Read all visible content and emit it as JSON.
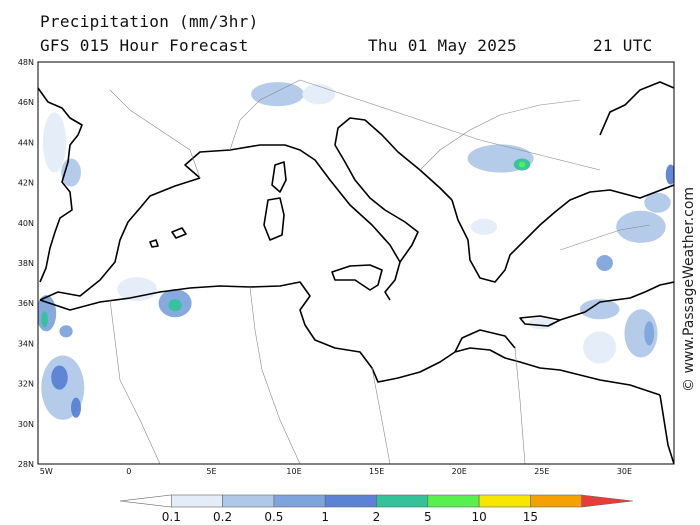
{
  "header": {
    "title": "Precipitation (mm/3hr)",
    "subtitle": "GFS 015 Hour Forecast",
    "date": "Thu 01 May 2025",
    "time": "21 UTC"
  },
  "credit": "© www.PassageWeather.com",
  "map": {
    "lon_range": [
      -5.5,
      33
    ],
    "lat_range": [
      28,
      48
    ],
    "lat_ticks": [
      {
        "value": 28,
        "label": "28N"
      },
      {
        "value": 30,
        "label": "30N"
      },
      {
        "value": 32,
        "label": "32N"
      },
      {
        "value": 34,
        "label": "34N"
      },
      {
        "value": 36,
        "label": "36N"
      },
      {
        "value": 38,
        "label": "38N"
      },
      {
        "value": 40,
        "label": "40N"
      },
      {
        "value": 42,
        "label": "42N"
      },
      {
        "value": 44,
        "label": "44N"
      },
      {
        "value": 46,
        "label": "46N"
      },
      {
        "value": 48,
        "label": "48N"
      }
    ],
    "lon_ticks": [
      {
        "value": -5,
        "label": "5W"
      },
      {
        "value": 0,
        "label": "0"
      },
      {
        "value": 5,
        "label": "5E"
      },
      {
        "value": 10,
        "label": "10E"
      },
      {
        "value": 15,
        "label": "15E"
      },
      {
        "value": 20,
        "label": "20E"
      },
      {
        "value": 25,
        "label": "25E"
      },
      {
        "value": 30,
        "label": "30E"
      }
    ],
    "precip_areas": [
      {
        "name": "alps-west",
        "lon": 9.0,
        "lat": 46.4,
        "rx": 1.6,
        "ry": 0.6,
        "level": 2
      },
      {
        "name": "alps-east",
        "lon": 11.5,
        "lat": 46.4,
        "rx": 1.0,
        "ry": 0.5,
        "level": 1
      },
      {
        "name": "balkans",
        "lon": 22.5,
        "lat": 43.2,
        "rx": 2.0,
        "ry": 0.7,
        "level": 2
      },
      {
        "name": "balkans-core",
        "lon": 23.8,
        "lat": 42.9,
        "rx": 0.5,
        "ry": 0.3,
        "level": 5
      },
      {
        "name": "balkans-peak",
        "lon": 23.8,
        "lat": 42.9,
        "rx": 0.2,
        "ry": 0.15,
        "level": 6
      },
      {
        "name": "france-west",
        "lon": -4.5,
        "lat": 44.0,
        "rx": 0.7,
        "ry": 1.5,
        "level": 1
      },
      {
        "name": "spain-north",
        "lon": -3.5,
        "lat": 42.5,
        "rx": 0.6,
        "ry": 0.7,
        "level": 2
      },
      {
        "name": "algeria-west",
        "lon": 0.5,
        "lat": 36.7,
        "rx": 1.2,
        "ry": 0.6,
        "level": 1
      },
      {
        "name": "algeria-central",
        "lon": 2.8,
        "lat": 36.0,
        "rx": 1.0,
        "ry": 0.7,
        "level": 3
      },
      {
        "name": "algeria-core",
        "lon": 2.8,
        "lat": 35.9,
        "rx": 0.4,
        "ry": 0.3,
        "level": 5
      },
      {
        "name": "morocco-north",
        "lon": -5.0,
        "lat": 35.5,
        "rx": 0.6,
        "ry": 0.9,
        "level": 3
      },
      {
        "name": "morocco-core",
        "lon": -5.1,
        "lat": 35.2,
        "rx": 0.2,
        "ry": 0.4,
        "level": 5
      },
      {
        "name": "morocco-coast",
        "lon": -3.8,
        "lat": 34.6,
        "rx": 0.4,
        "ry": 0.3,
        "level": 3
      },
      {
        "name": "morocco-atlas",
        "lon": -4.0,
        "lat": 31.8,
        "rx": 1.3,
        "ry": 1.6,
        "level": 2
      },
      {
        "name": "morocco-atlas-core",
        "lon": -4.2,
        "lat": 32.3,
        "rx": 0.5,
        "ry": 0.6,
        "level": 4
      },
      {
        "name": "morocco-atlas-south",
        "lon": -3.2,
        "lat": 30.8,
        "rx": 0.3,
        "ry": 0.5,
        "level": 4
      },
      {
        "name": "aegean-north",
        "lon": 21.5,
        "lat": 39.8,
        "rx": 0.8,
        "ry": 0.4,
        "level": 1
      },
      {
        "name": "turkey-west",
        "lon": 31.0,
        "lat": 39.8,
        "rx": 1.5,
        "ry": 0.8,
        "level": 2
      },
      {
        "name": "turkey-southwest",
        "lon": 28.8,
        "lat": 38.0,
        "rx": 0.5,
        "ry": 0.4,
        "level": 3
      },
      {
        "name": "turkey-blacksea",
        "lon": 32.0,
        "lat": 41.0,
        "rx": 0.8,
        "ry": 0.5,
        "level": 2
      },
      {
        "name": "turkey-east",
        "lon": 32.8,
        "lat": 42.4,
        "rx": 0.3,
        "ry": 0.5,
        "level": 4
      },
      {
        "name": "rhodes-area",
        "lon": 28.5,
        "lat": 35.7,
        "rx": 1.2,
        "ry": 0.5,
        "level": 2
      },
      {
        "name": "cyprus-west",
        "lon": 31.0,
        "lat": 34.5,
        "rx": 1.0,
        "ry": 1.2,
        "level": 2
      },
      {
        "name": "cyprus-core",
        "lon": 31.5,
        "lat": 34.5,
        "rx": 0.3,
        "ry": 0.6,
        "level": 3
      },
      {
        "name": "levant-sea",
        "lon": 28.5,
        "lat": 33.8,
        "rx": 1.0,
        "ry": 0.8,
        "level": 1
      },
      {
        "name": "crete-area",
        "lon": 25.0,
        "lat": 35.0,
        "rx": 0.8,
        "ry": 0.3,
        "level": 1
      }
    ]
  },
  "legend": {
    "colors": [
      "#ffffff",
      "#e4ecf8",
      "#b0c8e8",
      "#7fa4dc",
      "#5b82d4",
      "#33c29a",
      "#58f04e",
      "#f7e600",
      "#f5a100",
      "#ea3b3b"
    ],
    "labels": [
      "0.1",
      "0.2",
      "0.5",
      "1",
      "2",
      "5",
      "10",
      "15"
    ]
  }
}
